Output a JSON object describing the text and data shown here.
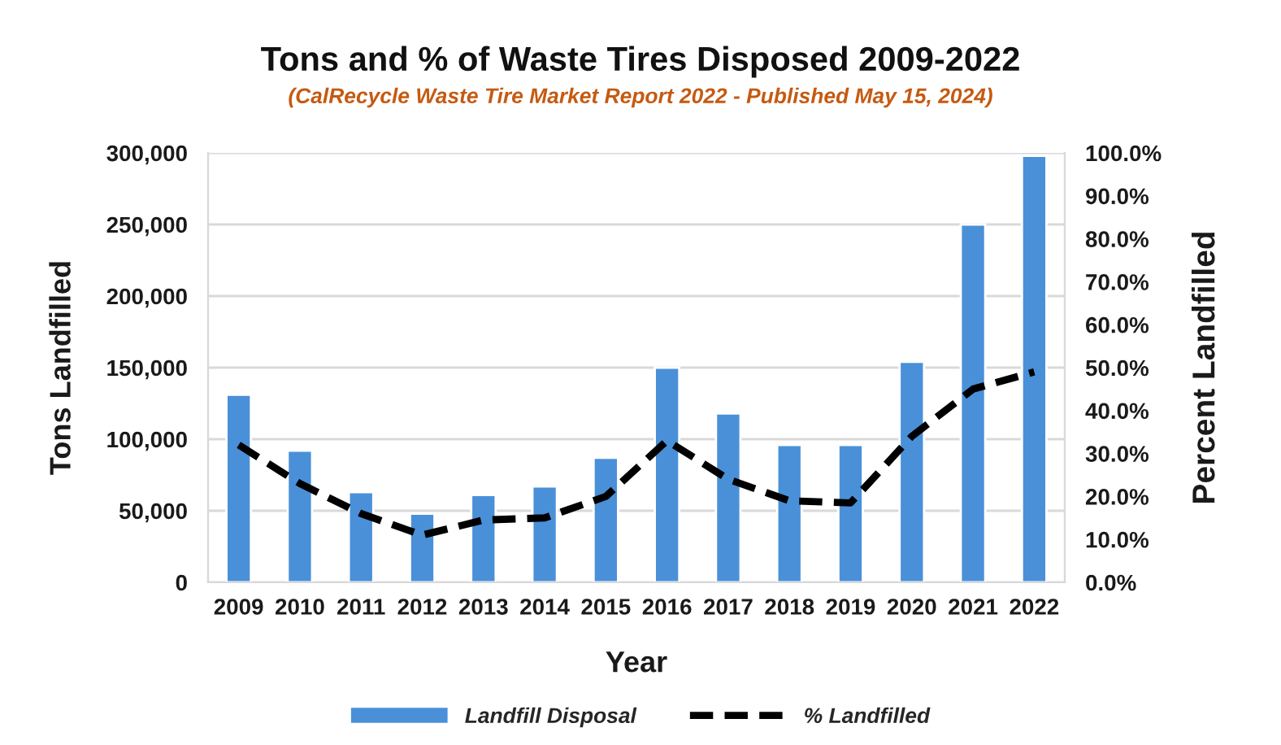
{
  "chart_data": {
    "type": "bar",
    "title": "Tons and % of Waste Tires Disposed 2009-2022",
    "subtitle": "(CalRecycle Waste Tire Market Report 2022 - Published May 15, 2024)",
    "xlabel": "Year",
    "ylabel": "Tons Landfilled",
    "y2label": "Percent Landfilled",
    "categories": [
      "2009",
      "2010",
      "2011",
      "2012",
      "2013",
      "2014",
      "2015",
      "2016",
      "2017",
      "2018",
      "2019",
      "2020",
      "2021",
      "2022"
    ],
    "series": [
      {
        "name": "Landfill Disposal",
        "color": "#4a90d9",
        "values": [
          131000,
          92000,
          63000,
          48000,
          61000,
          67000,
          87000,
          150000,
          118000,
          96000,
          96000,
          154000,
          250000,
          298000
        ]
      },
      {
        "name": "% Landfilled",
        "type": "line",
        "axis": "y2",
        "color": "#000000",
        "line_style": "dashed",
        "values": [
          32,
          23,
          16,
          11,
          14.5,
          15,
          20,
          33,
          24,
          19,
          18.5,
          34,
          45,
          49
        ]
      }
    ],
    "ylim": [
      0,
      300000
    ],
    "yticks": [
      {
        "value": 0,
        "label": "0"
      },
      {
        "value": 50000,
        "label": "50,000"
      },
      {
        "value": 100000,
        "label": "100,000"
      },
      {
        "value": 150000,
        "label": "150,000"
      },
      {
        "value": 200000,
        "label": "200,000"
      },
      {
        "value": 250000,
        "label": "250,000"
      },
      {
        "value": 300000,
        "label": "300,000"
      }
    ],
    "y2lim": [
      0,
      100
    ],
    "y2ticks": [
      {
        "value": 0,
        "label": "0.0%"
      },
      {
        "value": 10,
        "label": "10.0%"
      },
      {
        "value": 20,
        "label": "20.0%"
      },
      {
        "value": 30,
        "label": "30.0%"
      },
      {
        "value": 40,
        "label": "40.0%"
      },
      {
        "value": 50,
        "label": "50.0%"
      },
      {
        "value": 60,
        "label": "60.0%"
      },
      {
        "value": 70,
        "label": "70.0%"
      },
      {
        "value": 80,
        "label": "80.0%"
      },
      {
        "value": 90,
        "label": "90.0%"
      },
      {
        "value": 100,
        "label": "100.0%"
      }
    ],
    "grid": "y",
    "legend": "bottom"
  }
}
